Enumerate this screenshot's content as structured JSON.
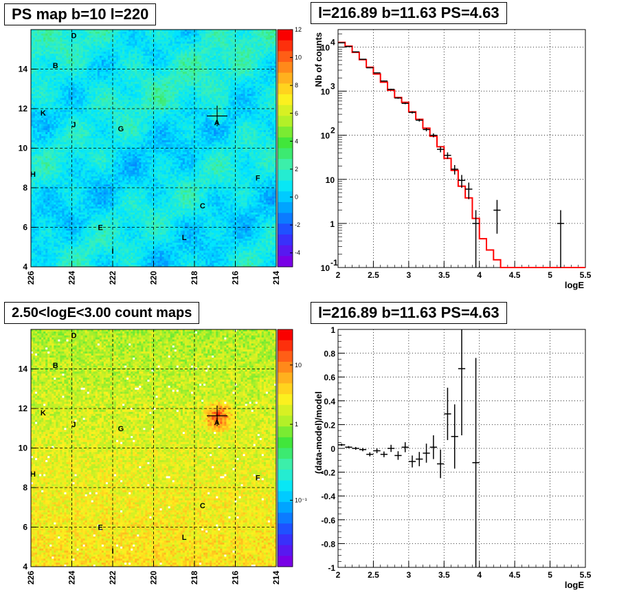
{
  "titles": {
    "ps_map": "PS map b=10 l=220",
    "spectrum": "l=216.89 b=11.63 PS=4.63",
    "count_map": "2.50<logE<3.00 count maps",
    "residual": "l=216.89 b=11.63 PS=4.63"
  },
  "colors": {
    "model_line": "#ff0000",
    "data_points": "#000000",
    "grid": "#000000"
  },
  "chart_data": [
    {
      "type": "heatmap",
      "name": "ps-map",
      "title": "PS map b=10 l=220",
      "x_ticks": [
        "226",
        "224",
        "222",
        "220",
        "218",
        "216",
        "214"
      ],
      "x_range": [
        226,
        214
      ],
      "y_ticks": [
        "4",
        "6",
        "8",
        "10",
        "12",
        "14"
      ],
      "y_range": [
        4,
        16
      ],
      "colorbar_ticks": [
        "12",
        "10",
        "8",
        "6",
        "4",
        "2",
        "0",
        "-2",
        "-4"
      ],
      "colorbar_range": [
        -5,
        12
      ],
      "marker": {
        "l": 216.89,
        "b": 11.63
      },
      "sources": [
        {
          "label": "D",
          "l": 223.9,
          "b": 15.7
        },
        {
          "label": "B",
          "l": 224.8,
          "b": 14.2
        },
        {
          "label": "K",
          "l": 225.4,
          "b": 11.8
        },
        {
          "label": "J",
          "l": 223.9,
          "b": 11.2
        },
        {
          "label": "G",
          "l": 221.6,
          "b": 11.0
        },
        {
          "label": "A",
          "l": 216.9,
          "b": 11.3
        },
        {
          "label": "H",
          "l": 225.9,
          "b": 8.7
        },
        {
          "label": "F",
          "l": 214.9,
          "b": 8.5
        },
        {
          "label": "C",
          "l": 217.6,
          "b": 7.1
        },
        {
          "label": "E",
          "l": 222.6,
          "b": 6.0
        },
        {
          "label": "L",
          "l": 218.5,
          "b": 5.5
        },
        {
          "label": "I",
          "l": 222.0,
          "b": 4.8
        }
      ]
    },
    {
      "type": "line",
      "name": "spectrum",
      "title": "l=216.89 b=11.63 PS=4.63",
      "xlabel": "logE",
      "ylabel": "Nb of counts",
      "xlim": [
        2,
        5.5
      ],
      "ylim_log": [
        0.1,
        25000
      ],
      "y_scale": "log",
      "x_ticks": [
        "2",
        "2.5",
        "3",
        "3.5",
        "4",
        "4.5",
        "5",
        "5.5"
      ],
      "y_ticks": [
        {
          "v": 0.1,
          "base": "10",
          "exp": "-1"
        },
        {
          "v": 1,
          "base": "1",
          "exp": ""
        },
        {
          "v": 10,
          "base": "10",
          "exp": ""
        },
        {
          "v": 100,
          "base": "10",
          "exp": "2"
        },
        {
          "v": 1000,
          "base": "10",
          "exp": "3"
        },
        {
          "v": 10000,
          "base": "10",
          "exp": "4"
        }
      ],
      "bin_width": 0.1,
      "data": [
        {
          "x": 2.05,
          "y": 12500
        },
        {
          "x": 2.15,
          "y": 10300
        },
        {
          "x": 2.25,
          "y": 7800
        },
        {
          "x": 2.35,
          "y": 5300
        },
        {
          "x": 2.45,
          "y": 3400
        },
        {
          "x": 2.55,
          "y": 2600
        },
        {
          "x": 2.65,
          "y": 1700
        },
        {
          "x": 2.75,
          "y": 1100
        },
        {
          "x": 2.85,
          "y": 700
        },
        {
          "x": 2.95,
          "y": 530
        },
        {
          "x": 3.05,
          "y": 330
        },
        {
          "x": 3.15,
          "y": 220
        },
        {
          "x": 3.25,
          "y": 135
        },
        {
          "x": 3.35,
          "y": 100
        },
        {
          "x": 3.45,
          "y": 48
        },
        {
          "x": 3.55,
          "y": 35
        },
        {
          "x": 3.65,
          "y": 17
        },
        {
          "x": 3.75,
          "y": 9.5
        },
        {
          "x": 3.85,
          "y": 6
        },
        {
          "x": 3.95,
          "y": 1
        },
        {
          "x": 4.25,
          "y": 2
        },
        {
          "x": 5.15,
          "y": 1
        }
      ],
      "model": [
        12800,
        10500,
        7600,
        5200,
        3500,
        2450,
        1600,
        1050,
        720,
        560,
        340,
        230,
        145,
        95,
        55,
        30,
        16,
        7,
        3.8,
        1.3,
        0.45,
        0.25,
        0.15,
        0.1,
        0.1,
        0.1,
        0.1,
        0.1,
        0.1,
        0.1,
        0.1,
        0.1,
        0.1,
        0.1,
        0.1
      ]
    },
    {
      "type": "heatmap",
      "name": "count-map",
      "title": "2.50<logE<3.00 count maps",
      "x_ticks": [
        "226",
        "224",
        "222",
        "220",
        "218",
        "216",
        "214"
      ],
      "x_range": [
        226,
        214
      ],
      "y_ticks": [
        "4",
        "6",
        "8",
        "10",
        "12",
        "14"
      ],
      "y_range": [
        4,
        16
      ],
      "colorbar_ticks": [
        "10",
        "1",
        "10⁻¹"
      ],
      "marker": {
        "l": 216.89,
        "b": 11.63
      },
      "sources": [
        {
          "label": "D",
          "l": 223.9,
          "b": 15.7
        },
        {
          "label": "B",
          "l": 224.8,
          "b": 14.2
        },
        {
          "label": "K",
          "l": 225.4,
          "b": 11.8
        },
        {
          "label": "J",
          "l": 223.9,
          "b": 11.2
        },
        {
          "label": "G",
          "l": 221.6,
          "b": 11.0
        },
        {
          "label": "A",
          "l": 216.9,
          "b": 11.3
        },
        {
          "label": "H",
          "l": 225.9,
          "b": 8.7
        },
        {
          "label": "F",
          "l": 214.9,
          "b": 8.5
        },
        {
          "label": "C",
          "l": 217.6,
          "b": 7.1
        },
        {
          "label": "E",
          "l": 222.6,
          "b": 6.0
        },
        {
          "label": "L",
          "l": 218.5,
          "b": 5.5
        },
        {
          "label": "I",
          "l": 222.0,
          "b": 4.8
        }
      ]
    },
    {
      "type": "scatter",
      "name": "residual",
      "title": "l=216.89 b=11.63 PS=4.63",
      "xlabel": "logE",
      "ylabel": "(data-model)/model",
      "xlim": [
        2,
        5.5
      ],
      "ylim": [
        -1,
        1
      ],
      "x_ticks": [
        "2",
        "2.5",
        "3",
        "3.5",
        "4",
        "4.5",
        "5",
        "5.5"
      ],
      "y_ticks": [
        "1",
        "0.8",
        "0.6",
        "0.4",
        "0.2",
        "0",
        "-0.2",
        "-0.4",
        "-0.6",
        "-0.8",
        "-1"
      ],
      "bin_width": 0.1,
      "data": [
        {
          "x": 2.05,
          "y": 0.03,
          "err": 0.01
        },
        {
          "x": 2.15,
          "y": 0.01,
          "err": 0.01
        },
        {
          "x": 2.25,
          "y": 0.0,
          "err": 0.012
        },
        {
          "x": 2.35,
          "y": -0.01,
          "err": 0.014
        },
        {
          "x": 2.45,
          "y": -0.05,
          "err": 0.017
        },
        {
          "x": 2.55,
          "y": -0.02,
          "err": 0.02
        },
        {
          "x": 2.65,
          "y": -0.05,
          "err": 0.024
        },
        {
          "x": 2.75,
          "y": 0.0,
          "err": 0.03
        },
        {
          "x": 2.85,
          "y": -0.06,
          "err": 0.036
        },
        {
          "x": 2.95,
          "y": 0.01,
          "err": 0.042
        },
        {
          "x": 3.05,
          "y": -0.11,
          "err": 0.05
        },
        {
          "x": 3.15,
          "y": -0.09,
          "err": 0.06
        },
        {
          "x": 3.25,
          "y": -0.04,
          "err": 0.08
        },
        {
          "x": 3.35,
          "y": 0.01,
          "err": 0.1
        },
        {
          "x": 3.45,
          "y": -0.13,
          "err": 0.12
        },
        {
          "x": 3.55,
          "y": 0.29,
          "err": 0.22
        },
        {
          "x": 3.65,
          "y": 0.1,
          "err": 0.27
        },
        {
          "x": 3.75,
          "y": 0.67,
          "err": 0.56
        },
        {
          "x": 3.95,
          "y": -0.12,
          "err": 0.88
        }
      ]
    }
  ]
}
